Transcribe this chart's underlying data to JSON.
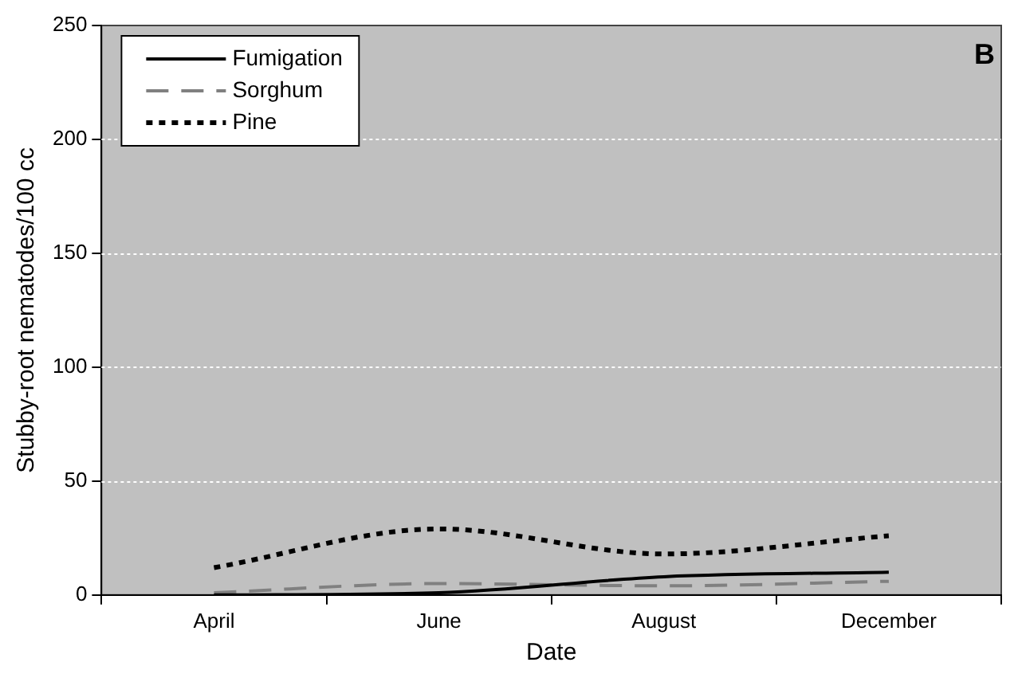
{
  "chart_data": {
    "type": "line",
    "xlabel": "Date",
    "ylabel": "Stubby-root nematodes/100 cc",
    "categories": [
      "April",
      "June",
      "August",
      "December"
    ],
    "series": [
      {
        "name": "Fumigation",
        "color": "#000000",
        "line_style": "solid",
        "values": [
          0,
          1,
          8,
          10
        ]
      },
      {
        "name": "Sorghum",
        "color": "#808080",
        "line_style": "dashed",
        "values": [
          1,
          5,
          4,
          6
        ]
      },
      {
        "name": "Pine",
        "color": "#000000",
        "line_style": "dotted",
        "values": [
          12,
          29,
          18,
          26
        ]
      }
    ],
    "ylim": [
      0,
      250
    ],
    "yticks": [
      0,
      50,
      100,
      150,
      200,
      250
    ],
    "grid": "y",
    "legend": "top left",
    "marker": "none",
    "annotations": [
      "B"
    ]
  }
}
